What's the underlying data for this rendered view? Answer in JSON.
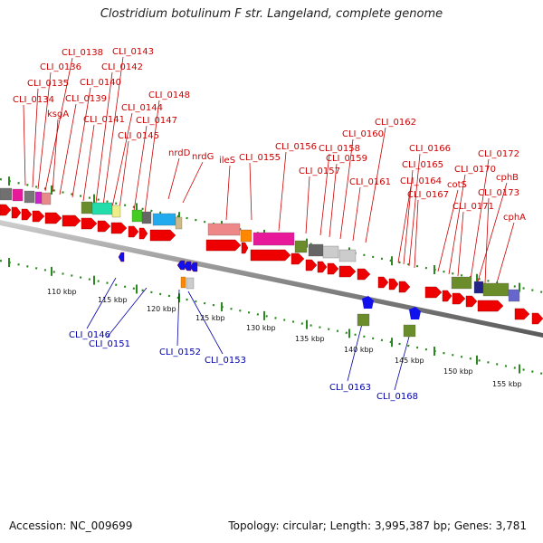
{
  "title": "Clostridium botulinum F str. Langeland, complete genome",
  "footer": {
    "accession": "Accession: NC_009699",
    "summary": "Topology: circular; Length: 3,995,387 bp; Genes: 3,781"
  },
  "colors": {
    "forward_label": "#cc0000",
    "reverse_label": "#0000aa",
    "forward_gene": "#ee0000",
    "reverse_gene": "#1111ee",
    "tick": "#2a8a1f",
    "backbone": "#888888"
  },
  "scale_labels": [
    "110 kbp",
    "115 kbp",
    "120 kbp",
    "125 kbp",
    "130 kbp",
    "135 kbp",
    "140 kbp",
    "145 kbp",
    "150 kbp",
    "155 kbp"
  ],
  "forward_labels": [
    "CLI_0134",
    "CLI_0135",
    "CLI_0136",
    "CLI_0138",
    "ksgA",
    "CLI_0139",
    "CLI_0140",
    "CLI_0141",
    "CLI_0142",
    "CLI_0143",
    "CLI_0144",
    "CLI_0145",
    "CLI_0147",
    "CLI_0148",
    "nrdD",
    "nrdG",
    "ileS",
    "CLI_0155",
    "CLI_0156",
    "CLI_0157",
    "CLI_0158",
    "CLI_0159",
    "CLI_0160",
    "CLI_0161",
    "CLI_0162",
    "CLI_0164",
    "CLI_0165",
    "CLI_0166",
    "CLI_0167",
    "cotS",
    "CLI_0170",
    "CLI_0171",
    "CLI_0172",
    "cphB",
    "CLI_0173",
    "cphA"
  ],
  "reverse_labels": [
    "CLI_0146",
    "CLI_0151",
    "CLI_0152",
    "CLI_0153",
    "CLI_0163",
    "CLI_0168"
  ]
}
